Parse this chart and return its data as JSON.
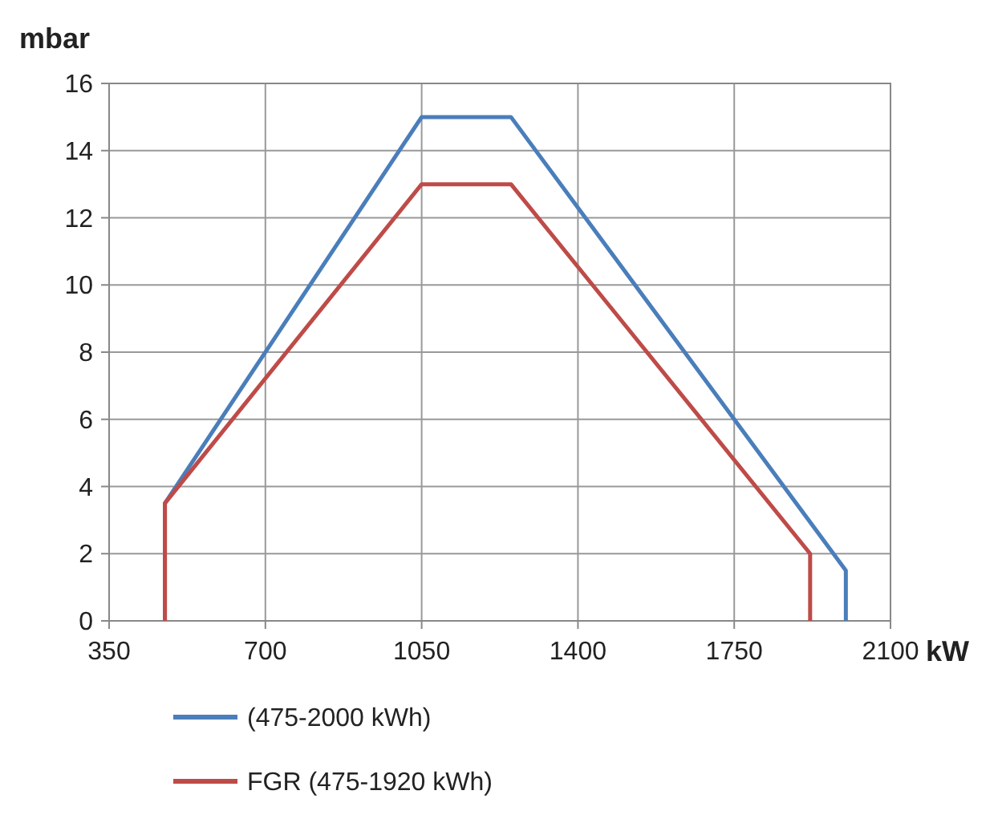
{
  "chart_data": {
    "type": "line",
    "ylabel": "mbar",
    "xlabel": "kW",
    "xlim": [
      350,
      2100
    ],
    "xticks": [
      350,
      700,
      1050,
      1400,
      1750,
      2100
    ],
    "ylim": [
      0,
      16
    ],
    "yticks": [
      0,
      2,
      4,
      6,
      8,
      10,
      12,
      14,
      16
    ],
    "grid": true,
    "legend": "bottom",
    "marker": "none",
    "line_style": "solid",
    "series": [
      {
        "name": "(475-2000 kWh)",
        "color": "#4a7ebb",
        "x": [
          475,
          475,
          1050,
          1250,
          2000,
          2000
        ],
        "values": [
          0,
          3.5,
          15,
          15,
          1.5,
          0
        ]
      },
      {
        "name": "FGR (475-1920 kWh)",
        "color": "#be4b48",
        "x": [
          475,
          475,
          1050,
          1250,
          1920,
          1920
        ],
        "values": [
          0,
          3.5,
          13,
          13,
          2,
          0
        ]
      }
    ]
  }
}
